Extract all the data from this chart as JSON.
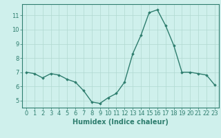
{
  "x": [
    0,
    1,
    2,
    3,
    4,
    5,
    6,
    7,
    8,
    9,
    10,
    11,
    12,
    13,
    14,
    15,
    16,
    17,
    18,
    19,
    20,
    21,
    22,
    23
  ],
  "y": [
    7.0,
    6.9,
    6.6,
    6.9,
    6.8,
    6.5,
    6.3,
    5.7,
    4.9,
    4.8,
    5.2,
    5.5,
    6.3,
    8.3,
    9.6,
    11.2,
    11.4,
    10.3,
    8.9,
    7.0,
    7.0,
    6.9,
    6.8,
    6.1
  ],
  "line_color": "#2e7d6e",
  "marker": "D",
  "marker_size": 1.8,
  "line_width": 1.0,
  "xlabel": "Humidex (Indice chaleur)",
  "xlabel_fontsize": 7,
  "ylim": [
    4.5,
    11.8
  ],
  "xlim": [
    -0.5,
    23.5
  ],
  "yticks": [
    5,
    6,
    7,
    8,
    9,
    10,
    11
  ],
  "xticks": [
    0,
    1,
    2,
    3,
    4,
    5,
    6,
    7,
    8,
    9,
    10,
    11,
    12,
    13,
    14,
    15,
    16,
    17,
    18,
    19,
    20,
    21,
    22,
    23
  ],
  "bg_color": "#cff0ec",
  "grid_color": "#b0d8d0",
  "tick_fontsize": 6,
  "axes_color": "#2e7d6e",
  "spine_color": "#2e7d6e"
}
